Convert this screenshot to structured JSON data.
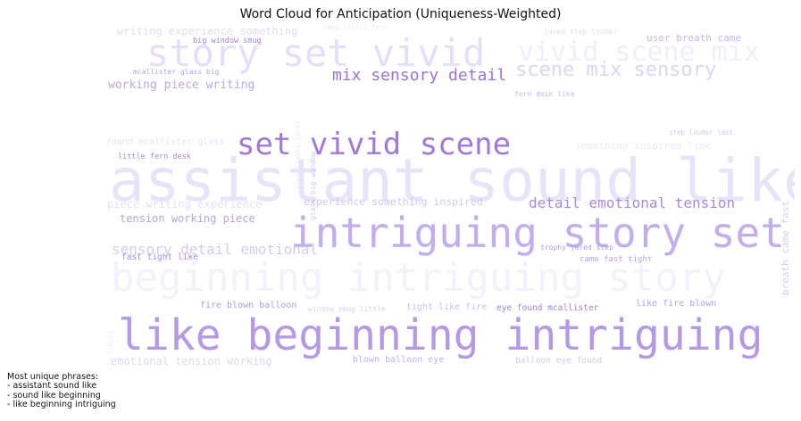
{
  "title": "Word Cloud for Anticipation (Uniqueness-Weighted)",
  "chart_data": {
    "type": "wordcloud",
    "words": [
      {
        "text": "assistant sound like",
        "color": "#e9e3fa"
      },
      {
        "text": "like beginning intriguing",
        "color": "#b49ae6"
      },
      {
        "text": "intriguing story set",
        "color": "#c2aeee"
      },
      {
        "text": "beginning intriguing story",
        "color": "#f3f1fb"
      },
      {
        "text": "set vivid scene",
        "color": "#9f78da"
      },
      {
        "text": "story set vivid",
        "color": "#e6def8"
      },
      {
        "text": "vivid scene mix",
        "color": "#f1eefb"
      },
      {
        "text": "scene mix sensory",
        "color": "#ddd3f5"
      },
      {
        "text": "mix sensory detail",
        "color": "#9b73d8"
      },
      {
        "text": "detail emotional tension",
        "color": "#a889e0"
      },
      {
        "text": "sensory detail emotional",
        "color": "#d6caf3"
      },
      {
        "text": "working piece writing",
        "color": "#bba6ea"
      },
      {
        "text": "tension working piece",
        "color": "#b8a2e9"
      },
      {
        "text": "piece writing experience",
        "color": "#e6def8"
      },
      {
        "text": "experience something inspired",
        "color": "#d3c6f2"
      },
      {
        "text": "writing experience something",
        "color": "#e4dcf7"
      },
      {
        "text": "emotional tension working",
        "color": "#dfd6f6"
      },
      {
        "text": "user breath came",
        "color": "#c7b5ef"
      },
      {
        "text": "breath came fast",
        "color": "#d8cdf4"
      },
      {
        "text": "something inspired line",
        "color": "#ece8fa"
      },
      {
        "text": "found mcallister glass",
        "color": "#e8e2f9"
      },
      {
        "text": "fire blown balloon",
        "color": "#b39ae6"
      },
      {
        "text": "like fire blown",
        "color": "#b8a2e9"
      },
      {
        "text": "blown balloon eye",
        "color": "#c4b2ee"
      },
      {
        "text": "balloon eye found",
        "color": "#d5c9f3"
      },
      {
        "text": "eye found mcallister",
        "color": "#9f80dc"
      },
      {
        "text": "tight like fire",
        "color": "#cdbff1"
      },
      {
        "text": "window smug little",
        "color": "#d9cff5"
      },
      {
        "text": "came fast tight",
        "color": "#b8a2e9"
      },
      {
        "text": "fast tight like",
        "color": "#a98be0"
      },
      {
        "text": "trophy jared step",
        "color": "#b39be6"
      },
      {
        "text": "little fern desk",
        "color": "#a98be0"
      },
      {
        "text": "fern desk like",
        "color": "#c9b9f0"
      },
      {
        "text": "step louder last",
        "color": "#d3c6f2"
      },
      {
        "text": "mcallister glass big",
        "color": "#b7a1e8"
      },
      {
        "text": "big window smug",
        "color": "#a284dd"
      },
      {
        "text": "jared step louder",
        "color": "#e3dbf7"
      },
      {
        "text": "smug little fern",
        "color": "#ece8fa"
      },
      {
        "text": "glass big window",
        "color": "#d3c6f2"
      },
      {
        "text": "like trophy jared",
        "color": "#ece8fa"
      },
      {
        "text": "desk like trophy",
        "color": "#f0edfb"
      }
    ],
    "annotation": {
      "heading": "Most unique phrases:",
      "items": [
        "- assistant sound like",
        "- sound like beginning",
        "- like beginning intriguing"
      ]
    }
  }
}
